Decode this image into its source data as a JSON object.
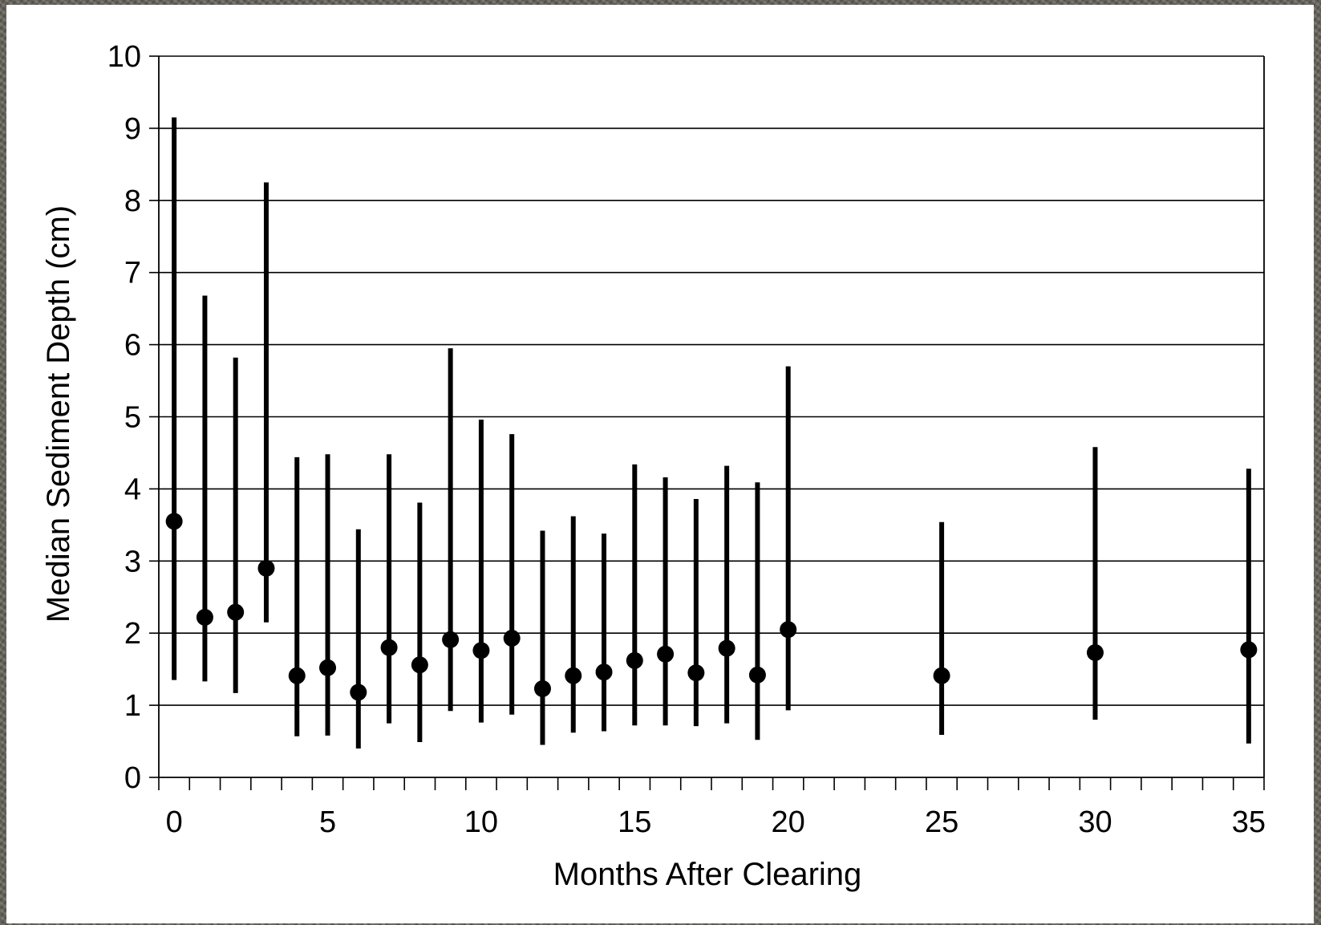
{
  "chart_data": {
    "type": "scatter",
    "title": "",
    "xlabel": "Months After Clearing",
    "ylabel": "Median Sediment Depth (cm)",
    "xlim": [
      -0.5,
      35.5
    ],
    "ylim": [
      0,
      10
    ],
    "x_ticks": [
      0,
      5,
      10,
      15,
      20,
      25,
      30,
      35
    ],
    "y_ticks": [
      0,
      1,
      2,
      3,
      4,
      5,
      6,
      7,
      8,
      9,
      10
    ],
    "grid": "horizontal",
    "legend": "none",
    "series": [
      {
        "points": [
          {
            "x": 0,
            "y": 3.55,
            "low": 1.35,
            "high": 9.15
          },
          {
            "x": 1,
            "y": 2.22,
            "low": 1.33,
            "high": 6.68
          },
          {
            "x": 2,
            "y": 2.29,
            "low": 1.17,
            "high": 5.82
          },
          {
            "x": 3,
            "y": 2.9,
            "low": 2.15,
            "high": 8.25
          },
          {
            "x": 4,
            "y": 1.41,
            "low": 0.57,
            "high": 4.44
          },
          {
            "x": 5,
            "y": 1.52,
            "low": 0.58,
            "high": 4.48
          },
          {
            "x": 6,
            "y": 1.18,
            "low": 0.4,
            "high": 3.44
          },
          {
            "x": 7,
            "y": 1.8,
            "low": 0.75,
            "high": 4.48
          },
          {
            "x": 8,
            "y": 1.56,
            "low": 0.49,
            "high": 3.81
          },
          {
            "x": 9,
            "y": 1.91,
            "low": 0.92,
            "high": 5.95
          },
          {
            "x": 10,
            "y": 1.76,
            "low": 0.76,
            "high": 4.96
          },
          {
            "x": 11,
            "y": 1.93,
            "low": 0.87,
            "high": 4.76
          },
          {
            "x": 12,
            "y": 1.23,
            "low": 0.45,
            "high": 3.42
          },
          {
            "x": 13,
            "y": 1.41,
            "low": 0.62,
            "high": 3.62
          },
          {
            "x": 14,
            "y": 1.46,
            "low": 0.64,
            "high": 3.38
          },
          {
            "x": 15,
            "y": 1.62,
            "low": 0.72,
            "high": 4.34
          },
          {
            "x": 16,
            "y": 1.71,
            "low": 0.72,
            "high": 4.16
          },
          {
            "x": 17,
            "y": 1.45,
            "low": 0.71,
            "high": 3.86
          },
          {
            "x": 18,
            "y": 1.79,
            "low": 0.75,
            "high": 4.32
          },
          {
            "x": 19,
            "y": 1.42,
            "low": 0.52,
            "high": 4.09
          },
          {
            "x": 20,
            "y": 2.05,
            "low": 0.93,
            "high": 5.7
          },
          {
            "x": 25,
            "y": 1.41,
            "low": 0.59,
            "high": 3.54
          },
          {
            "x": 30,
            "y": 1.73,
            "low": 0.8,
            "high": 4.58
          },
          {
            "x": 35,
            "y": 1.77,
            "low": 0.47,
            "high": 4.28
          }
        ]
      }
    ],
    "colors": {
      "marks": "#000000",
      "grid": "#000000",
      "panel": "#ffffff"
    }
  }
}
